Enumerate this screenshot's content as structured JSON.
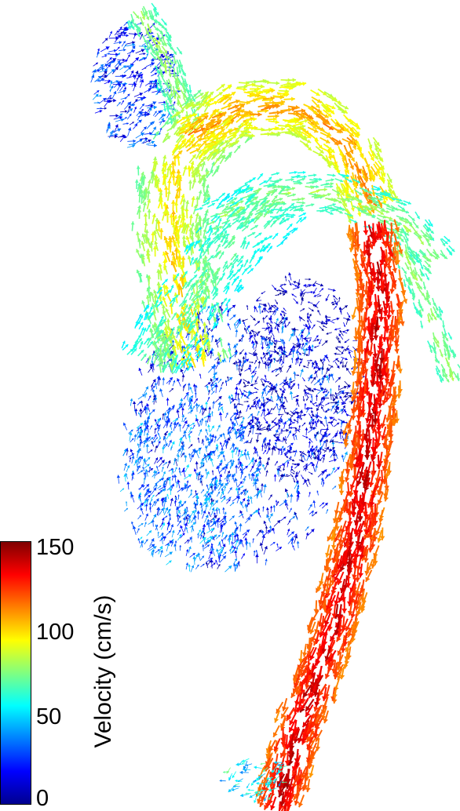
{
  "colorbar": {
    "label": "Velocity (cm/s)",
    "ticks": [
      "150",
      "100",
      "50",
      "0"
    ],
    "min": 0,
    "max": 150,
    "colormap": [
      "#00008f",
      "#0000ff",
      "#0080ff",
      "#00ffff",
      "#80ff80",
      "#ffff00",
      "#ff8000",
      "#ff0000",
      "#800000"
    ]
  },
  "image_description_colors": {
    "slow_flow": "#1a2ad8",
    "medium_flow": "#22c8e8",
    "fast_flow": "#f0a020",
    "peak_flow": "#b01010"
  }
}
